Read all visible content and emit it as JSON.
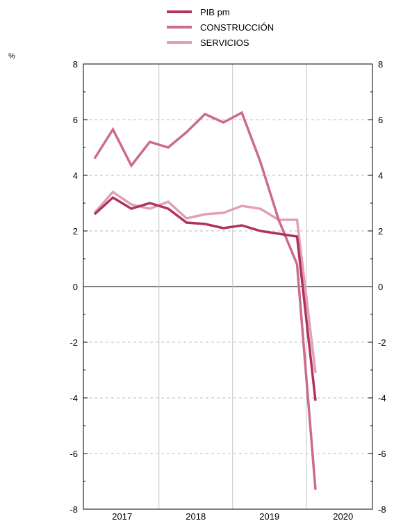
{
  "chart_data": {
    "type": "line",
    "title": "",
    "xlabel": "",
    "ylabel": "%",
    "ylim": [
      -8,
      8
    ],
    "yticks": [
      "8",
      "6",
      "4",
      "2",
      "0",
      "-2",
      "-4",
      "-6",
      "-8"
    ],
    "year_labels": [
      "2017",
      "2018",
      "2019",
      "2020"
    ],
    "quarters": [
      "2017-Q1",
      "2017-Q2",
      "2017-Q3",
      "2017-Q4",
      "2018-Q1",
      "2018-Q2",
      "2018-Q3",
      "2018-Q4",
      "2019-Q1",
      "2019-Q2",
      "2019-Q3",
      "2019-Q4",
      "2020-Q1"
    ],
    "grid": true,
    "legend_position": "top-center",
    "series": [
      {
        "name": "PIB pm",
        "color": "#b0325f",
        "values": [
          2.6,
          3.2,
          2.8,
          3.0,
          2.8,
          2.3,
          2.25,
          2.1,
          2.2,
          2.0,
          1.9,
          1.8,
          -4.1
        ]
      },
      {
        "name": "CONSTRUCCIÓN",
        "color": "#cc6a90",
        "values": [
          4.6,
          5.65,
          4.35,
          5.2,
          5.0,
          5.55,
          6.2,
          5.9,
          6.25,
          4.5,
          2.4,
          0.8,
          -7.3
        ]
      },
      {
        "name": "SERVICIOS",
        "color": "#e0a0b8",
        "values": [
          2.65,
          3.4,
          2.95,
          2.8,
          3.05,
          2.45,
          2.6,
          2.65,
          2.9,
          2.8,
          2.4,
          2.4,
          -3.1
        ]
      }
    ]
  }
}
